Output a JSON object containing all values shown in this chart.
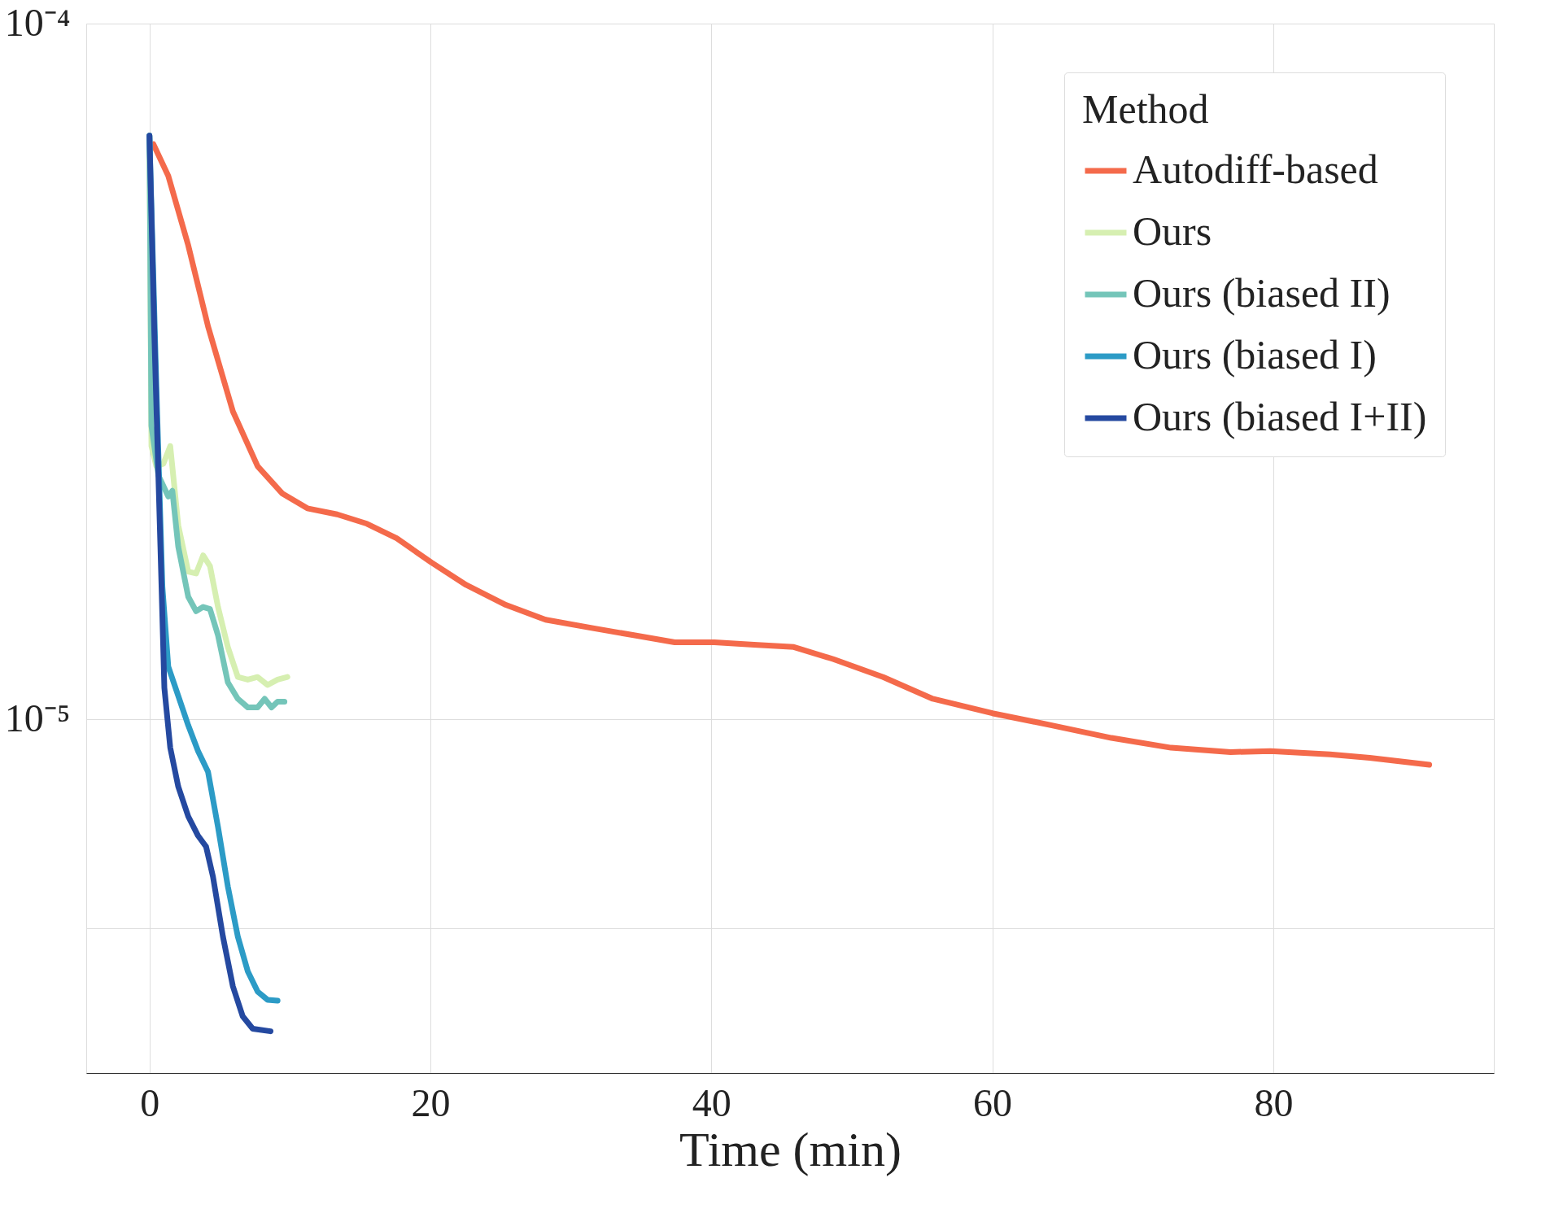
{
  "chart_data": {
    "type": "line",
    "xlabel": "Time (min)",
    "legend_title": "Method",
    "legend": "top right",
    "grid": true,
    "log": "y",
    "xlim": [
      -4.5,
      95.7
    ],
    "ylim": [
      3.1e-06,
      0.0001
    ],
    "xticks": [
      0,
      20,
      40,
      60,
      80
    ],
    "yticks": [
      {
        "value": 0.0001,
        "label": "10⁻⁴"
      },
      {
        "value": 1e-05,
        "label": "10⁻⁵"
      },
      {
        "value": 5e-06,
        "label": null
      }
    ],
    "series": [
      {
        "name": "Autodiff-based",
        "color": "#f46a4b",
        "x": [
          0.28,
          1.34,
          2.76,
          4.17,
          5.94,
          7.7,
          9.47,
          11.24,
          13.36,
          15.48,
          17.6,
          20.07,
          22.54,
          25.37,
          28.2,
          31.73,
          34.56,
          37.39,
          40.21,
          43.04,
          45.87,
          48.69,
          52.23,
          55.76,
          60.0,
          64.24,
          68.48,
          72.72,
          76.96,
          79.79,
          84.03,
          86.86,
          91.1
        ],
        "values": [
          6.71e-05,
          6.04e-05,
          4.8e-05,
          3.67e-05,
          2.77e-05,
          2.31e-05,
          2.11e-05,
          2.01e-05,
          1.97e-05,
          1.91e-05,
          1.82e-05,
          1.68e-05,
          1.56e-05,
          1.46e-05,
          1.39e-05,
          1.35e-05,
          1.32e-05,
          1.29e-05,
          1.29e-05,
          1.28e-05,
          1.27e-05,
          1.22e-05,
          1.15e-05,
          1.07e-05,
          1.02e-05,
          9.8e-06,
          9.4e-06,
          9.1e-06,
          8.97e-06,
          9e-06,
          8.9e-06,
          8.8e-06,
          8.6e-06
        ]
      },
      {
        "name": "Ours",
        "color": "#d6efb1",
        "x": [
          0,
          0.14,
          0.49,
          0.99,
          1.48,
          2.05,
          2.76,
          3.32,
          3.82,
          4.31,
          4.88,
          5.58,
          6.29,
          7.0,
          7.7,
          8.41,
          9.12,
          9.82
        ],
        "values": [
          6.9e-05,
          2.47e-05,
          2.31e-05,
          2.33e-05,
          2.47e-05,
          1.9e-05,
          1.63e-05,
          1.62e-05,
          1.72e-05,
          1.66e-05,
          1.45e-05,
          1.27e-05,
          1.15e-05,
          1.14e-05,
          1.15e-05,
          1.12e-05,
          1.14e-05,
          1.15e-05
        ]
      },
      {
        "name": "Ours (biased II)",
        "color": "#74c5b9",
        "x": [
          0,
          0.14,
          0.64,
          1.34,
          1.63,
          2.05,
          2.76,
          3.32,
          3.82,
          4.31,
          4.88,
          5.58,
          6.29,
          7.0,
          7.7,
          8.2,
          8.69,
          9.12,
          9.61
        ],
        "values": [
          6.9e-05,
          2.64e-05,
          2.24e-05,
          2.09e-05,
          2.13e-05,
          1.77e-05,
          1.5e-05,
          1.43e-05,
          1.45e-05,
          1.44e-05,
          1.32e-05,
          1.13e-05,
          1.07e-05,
          1.04e-05,
          1.04e-05,
          1.07e-05,
          1.04e-05,
          1.06e-05,
          1.06e-05
        ]
      },
      {
        "name": "Ours (biased I)",
        "color": "#2c9bc6",
        "x": [
          0,
          0.49,
          0.92,
          1.34,
          2.05,
          2.76,
          3.46,
          4.17,
          4.88,
          5.58,
          6.29,
          7.0,
          7.7,
          8.41,
          9.12
        ],
        "values": [
          6.9e-05,
          3.01e-05,
          1.55e-05,
          1.19e-05,
          1.08e-05,
          9.8e-06,
          9e-06,
          8.4e-06,
          7e-06,
          5.75e-06,
          4.87e-06,
          4.34e-06,
          4.06e-06,
          3.95e-06,
          3.94e-06
        ]
      },
      {
        "name": "Ours (biased I+II)",
        "color": "#2549a0",
        "x": [
          0,
          0.35,
          0.78,
          1.06,
          1.48,
          2.05,
          2.76,
          3.46,
          4.03,
          4.52,
          5.23,
          5.94,
          6.64,
          7.35,
          8.62
        ],
        "values": [
          6.9e-05,
          3.56e-05,
          1.77e-05,
          1.11e-05,
          9.1e-06,
          8e-06,
          7.25e-06,
          6.8e-06,
          6.56e-06,
          5.94e-06,
          4.87e-06,
          4.13e-06,
          3.74e-06,
          3.59e-06,
          3.56e-06
        ]
      }
    ]
  }
}
